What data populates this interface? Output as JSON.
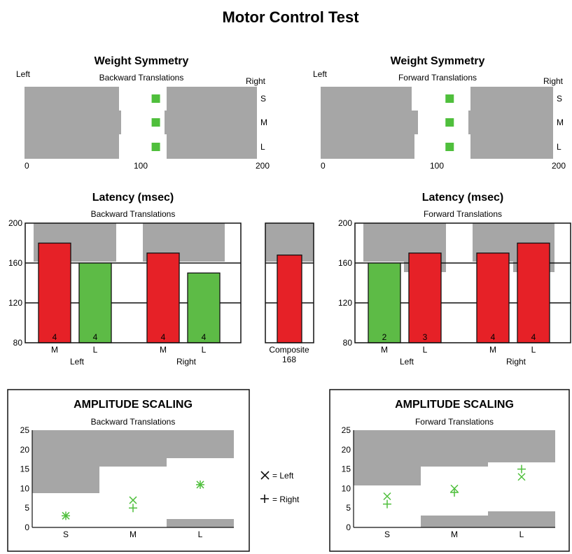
{
  "title": "Motor Control Test",
  "colors": {
    "gray": "#a6a6a6",
    "red": "#e62127",
    "green": "#5dbb46",
    "marker": "#4fbf3c",
    "axis": "#111111"
  },
  "chart_data": [
    {
      "id": "ws-back",
      "type": "bar",
      "title": "Weight Symmetry",
      "subtitle": "Backward Translations",
      "left_label": "Left",
      "right_label": "Right",
      "xlim": [
        0,
        200
      ],
      "xticks": [
        "0",
        "100",
        "200"
      ],
      "rows": [
        "S",
        "M",
        "L"
      ],
      "values": [
        113,
        113,
        113
      ]
    },
    {
      "id": "ws-fwd",
      "type": "bar",
      "title": "Weight Symmetry",
      "subtitle": "Forward Translations",
      "left_label": "Left",
      "right_label": "Right",
      "xlim": [
        0,
        200
      ],
      "xticks": [
        "0",
        "100",
        "200"
      ],
      "rows": [
        "S",
        "M",
        "L"
      ],
      "values": [
        111,
        111,
        111
      ]
    },
    {
      "id": "lat-back",
      "type": "bar",
      "title": "Latency (msec)",
      "subtitle": "Backward Translations",
      "ylim": [
        80,
        200
      ],
      "yticks": [
        "80",
        "120",
        "160",
        "200"
      ],
      "categories": [
        "M",
        "L",
        "M",
        "L"
      ],
      "groups": [
        "Left",
        "Right"
      ],
      "values": [
        180,
        160,
        170,
        150
      ],
      "counts": [
        "4",
        "4",
        "4",
        "4"
      ],
      "status": [
        "red",
        "green",
        "red",
        "green"
      ]
    },
    {
      "id": "lat-comp",
      "type": "bar",
      "categories": [
        "Composite"
      ],
      "value_label": "168",
      "ylim": [
        80,
        200
      ],
      "values": [
        168
      ],
      "status": [
        "red"
      ]
    },
    {
      "id": "lat-fwd",
      "type": "bar",
      "title": "Latency (msec)",
      "subtitle": "Forward Translations",
      "ylim": [
        80,
        200
      ],
      "yticks": [
        "80",
        "120",
        "160",
        "200"
      ],
      "categories": [
        "M",
        "L",
        "M",
        "L"
      ],
      "groups": [
        "Left",
        "Right"
      ],
      "values": [
        160,
        170,
        170,
        180
      ],
      "counts": [
        "2",
        "3",
        "4",
        "4"
      ],
      "status": [
        "green",
        "red",
        "red",
        "red"
      ]
    },
    {
      "id": "amp-back",
      "type": "scatter",
      "title": "AMPLITUDE SCALING",
      "subtitle": "Backward Translations",
      "ylim": [
        0,
        25
      ],
      "yticks": [
        "0",
        "5",
        "10",
        "15",
        "20",
        "25"
      ],
      "categories": [
        "S",
        "M",
        "L"
      ],
      "series": [
        {
          "values": [
            3,
            7,
            11
          ]
        },
        {
          "values": [
            3,
            5,
            11
          ]
        }
      ]
    },
    {
      "id": "amp-fwd",
      "type": "scatter",
      "title": "AMPLITUDE SCALING",
      "subtitle": "Forward Translations",
      "ylim": [
        0,
        25
      ],
      "yticks": [
        "0",
        "5",
        "10",
        "15",
        "20",
        "25"
      ],
      "categories": [
        "S",
        "M",
        "L"
      ],
      "series": [
        {
          "values": [
            8,
            10,
            13
          ]
        },
        {
          "values": [
            6,
            9,
            15
          ]
        }
      ]
    }
  ],
  "legend": {
    "left": "= Left",
    "right": "= Right"
  }
}
